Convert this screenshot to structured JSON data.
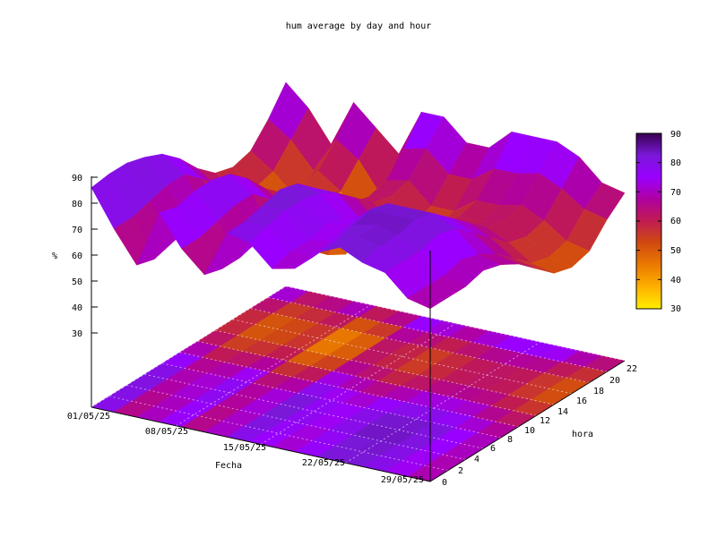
{
  "chart_data": {
    "type": "surface3d",
    "title": "hum average by day and hour",
    "xlabel": "Fecha",
    "ylabel": "hora",
    "zlabel": "%",
    "x_ticks": [
      "01/05/25",
      "08/05/25",
      "15/05/25",
      "22/05/25",
      "29/05/25"
    ],
    "y_ticks": [
      "0",
      "2",
      "4",
      "6",
      "8",
      "10",
      "12",
      "14",
      "16",
      "18",
      "20",
      "22"
    ],
    "z_ticks": [
      "30",
      "40",
      "50",
      "60",
      "70",
      "80",
      "90"
    ],
    "colorbar_ticks": [
      "30",
      "40",
      "50",
      "60",
      "70",
      "80",
      "90"
    ],
    "zlim": [
      30,
      90
    ],
    "palette": [
      "#ffee00",
      "#ffb000",
      "#ea7a00",
      "#d04a10",
      "#c01c50",
      "#b000a0",
      "#9a00ff",
      "#7a18d8",
      "#380050"
    ],
    "grid": true,
    "colorbar": "right",
    "xs": [
      "01/05/25",
      "03/05/25",
      "05/05/25",
      "07/05/25",
      "09/05/25",
      "11/05/25",
      "13/05/25",
      "15/05/25",
      "17/05/25",
      "19/05/25",
      "21/05/25",
      "23/05/25",
      "25/05/25",
      "27/05/25",
      "29/05/25",
      "31/05/25"
    ],
    "ys": [
      0,
      2,
      4,
      6,
      8,
      10,
      12,
      14,
      16,
      18,
      20,
      22
    ],
    "z": [
      [
        86,
        72,
        60,
        82,
        70,
        62,
        80,
        78,
        70,
        72,
        80,
        84,
        80,
        78,
        70,
        68
      ],
      [
        87,
        72,
        58,
        80,
        70,
        60,
        80,
        80,
        72,
        72,
        80,
        84,
        82,
        78,
        70,
        68
      ],
      [
        87,
        74,
        60,
        82,
        72,
        60,
        82,
        82,
        72,
        74,
        82,
        84,
        82,
        78,
        70,
        68
      ],
      [
        85,
        76,
        62,
        82,
        74,
        62,
        84,
        82,
        74,
        76,
        84,
        84,
        84,
        80,
        72,
        70
      ],
      [
        82,
        76,
        62,
        80,
        74,
        60,
        82,
        80,
        72,
        76,
        82,
        82,
        82,
        78,
        70,
        68
      ],
      [
        76,
        70,
        58,
        74,
        68,
        54,
        76,
        76,
        68,
        70,
        76,
        76,
        76,
        72,
        66,
        64
      ],
      [
        68,
        62,
        52,
        66,
        60,
        46,
        68,
        70,
        62,
        62,
        68,
        68,
        70,
        66,
        60,
        58
      ],
      [
        62,
        56,
        48,
        60,
        54,
        40,
        62,
        64,
        56,
        56,
        62,
        62,
        64,
        60,
        54,
        52
      ],
      [
        60,
        54,
        46,
        58,
        52,
        36,
        60,
        62,
        54,
        54,
        60,
        60,
        62,
        58,
        52,
        50
      ],
      [
        62,
        56,
        48,
        60,
        54,
        40,
        62,
        64,
        56,
        56,
        62,
        62,
        64,
        60,
        54,
        52
      ],
      [
        70,
        64,
        54,
        68,
        62,
        50,
        70,
        72,
        64,
        64,
        70,
        70,
        72,
        68,
        62,
        60
      ],
      [
        80,
        72,
        60,
        78,
        70,
        62,
        80,
        80,
        72,
        72,
        80,
        80,
        80,
        76,
        68,
        66
      ]
    ]
  }
}
